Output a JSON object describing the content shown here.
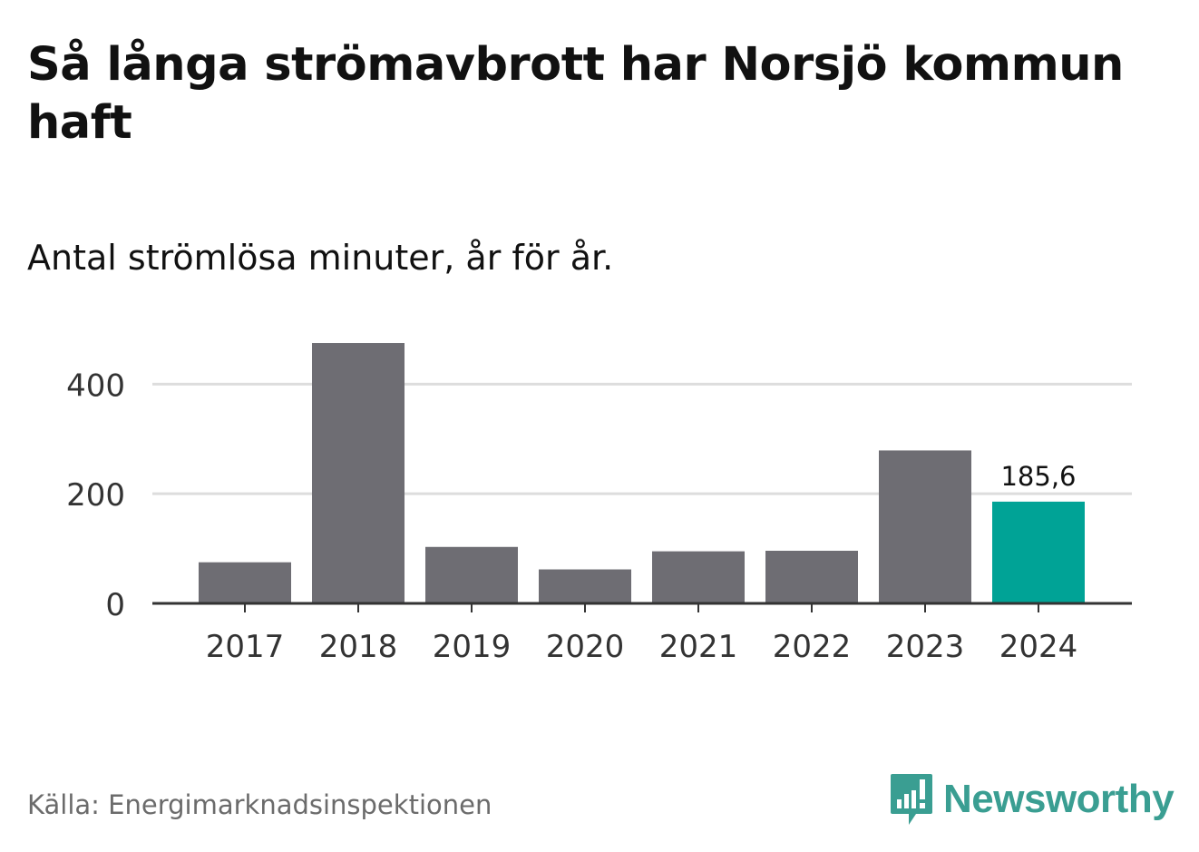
{
  "title": "Så långa strömavbrott har Norsjö kommun haft",
  "subtitle": "Antal strömlösa minuter, år för år.",
  "source": "Källa: Energimarknadsinspektionen",
  "brand": {
    "name": "Newsworthy",
    "icon": "newsworthy-logo-icon",
    "color": "#3a9e92"
  },
  "colors": {
    "bar": "#6e6d73",
    "highlight": "#00a396",
    "grid": "#dddddd",
    "axis": "#333333"
  },
  "chart_data": {
    "type": "bar",
    "categories": [
      "2017",
      "2018",
      "2019",
      "2020",
      "2021",
      "2022",
      "2023",
      "2024"
    ],
    "values": [
      75,
      475,
      103,
      62,
      95,
      96,
      279,
      185.6
    ],
    "highlight_index": 7,
    "data_labels": [
      {
        "index": 7,
        "text": "185,6"
      }
    ],
    "yticks": [
      0,
      200,
      400
    ],
    "ylim": [
      0,
      480
    ],
    "xlabel": "",
    "ylabel": "",
    "grid": true
  }
}
